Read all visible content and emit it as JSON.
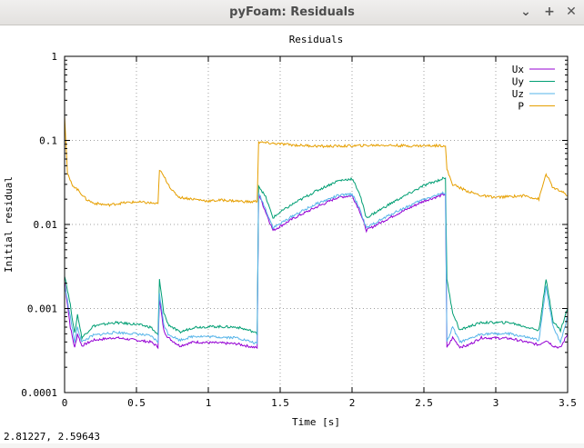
{
  "window": {
    "title": "pyFoam: Residuals",
    "minimize_glyph": "⌄",
    "maximize_glyph": "+",
    "close_glyph": "✕"
  },
  "status": {
    "coords": "2.81227,  2.59643"
  },
  "chart_data": {
    "type": "line",
    "title": "Residuals",
    "xlabel": "Time [s]",
    "ylabel": "Initial residual",
    "xlim": [
      0,
      3.5
    ],
    "ylim": [
      0.0001,
      1
    ],
    "yscale": "log",
    "grid": true,
    "legend_position": "top-right",
    "x_ticks": [
      0,
      0.5,
      1,
      1.5,
      2,
      2.5,
      3,
      3.5
    ],
    "x_tick_labels": [
      "0",
      "0.5",
      "1",
      "1.5",
      "2",
      "2.5",
      "3",
      "3.5"
    ],
    "y_ticks": [
      0.0001,
      0.001,
      0.01,
      0.1,
      1
    ],
    "y_tick_labels": [
      "0.0001",
      "0.001",
      "0.01",
      "0.1",
      "1"
    ],
    "series": [
      {
        "name": "Ux",
        "color": "#9400d3",
        "points": [
          [
            0,
            0.0021
          ],
          [
            0.04,
            0.0006
          ],
          [
            0.07,
            0.00034
          ],
          [
            0.09,
            0.0005
          ],
          [
            0.12,
            0.00036
          ],
          [
            0.2,
            0.00042
          ],
          [
            0.35,
            0.00045
          ],
          [
            0.5,
            0.00042
          ],
          [
            0.6,
            0.0004
          ],
          [
            0.65,
            0.00035
          ],
          [
            0.66,
            0.0013
          ],
          [
            0.69,
            0.00055
          ],
          [
            0.72,
            0.00045
          ],
          [
            0.8,
            0.00036
          ],
          [
            0.9,
            0.0004
          ],
          [
            1.05,
            0.00039
          ],
          [
            1.2,
            0.00038
          ],
          [
            1.3,
            0.00035
          ],
          [
            1.34,
            0.00034
          ],
          [
            1.35,
            0.023
          ],
          [
            1.4,
            0.014
          ],
          [
            1.45,
            0.0085
          ],
          [
            1.5,
            0.0095
          ],
          [
            1.6,
            0.012
          ],
          [
            1.75,
            0.016
          ],
          [
            1.9,
            0.021
          ],
          [
            2.0,
            0.022
          ],
          [
            2.05,
            0.015
          ],
          [
            2.1,
            0.0085
          ],
          [
            2.15,
            0.0095
          ],
          [
            2.3,
            0.013
          ],
          [
            2.5,
            0.019
          ],
          [
            2.65,
            0.023
          ],
          [
            2.66,
            0.00034
          ],
          [
            2.7,
            0.00045
          ],
          [
            2.75,
            0.00035
          ],
          [
            2.8,
            0.00036
          ],
          [
            2.9,
            0.00045
          ],
          [
            3.1,
            0.00044
          ],
          [
            3.3,
            0.00037
          ],
          [
            3.35,
            0.00042
          ],
          [
            3.4,
            0.00036
          ],
          [
            3.45,
            0.00034
          ],
          [
            3.5,
            0.0005
          ]
        ]
      },
      {
        "name": "Uy",
        "color": "#009e73",
        "points": [
          [
            0,
            0.0025
          ],
          [
            0.04,
            0.0011
          ],
          [
            0.07,
            0.0005
          ],
          [
            0.09,
            0.00085
          ],
          [
            0.12,
            0.00045
          ],
          [
            0.2,
            0.00062
          ],
          [
            0.35,
            0.00068
          ],
          [
            0.5,
            0.00065
          ],
          [
            0.6,
            0.0006
          ],
          [
            0.65,
            0.00048
          ],
          [
            0.66,
            0.0022
          ],
          [
            0.69,
            0.0009
          ],
          [
            0.72,
            0.00065
          ],
          [
            0.8,
            0.00052
          ],
          [
            0.9,
            0.0006
          ],
          [
            1.05,
            0.00061
          ],
          [
            1.2,
            0.0006
          ],
          [
            1.3,
            0.00054
          ],
          [
            1.34,
            0.0005
          ],
          [
            1.35,
            0.029
          ],
          [
            1.4,
            0.021
          ],
          [
            1.45,
            0.012
          ],
          [
            1.5,
            0.014
          ],
          [
            1.6,
            0.018
          ],
          [
            1.75,
            0.025
          ],
          [
            1.9,
            0.033
          ],
          [
            2.0,
            0.035
          ],
          [
            2.05,
            0.024
          ],
          [
            2.1,
            0.012
          ],
          [
            2.15,
            0.0135
          ],
          [
            2.3,
            0.019
          ],
          [
            2.5,
            0.029
          ],
          [
            2.65,
            0.036
          ],
          [
            2.66,
            0.0022
          ],
          [
            2.7,
            0.0009
          ],
          [
            2.75,
            0.00055
          ],
          [
            2.8,
            0.0006
          ],
          [
            2.9,
            0.00068
          ],
          [
            3.1,
            0.00068
          ],
          [
            3.3,
            0.00055
          ],
          [
            3.35,
            0.0022
          ],
          [
            3.4,
            0.0007
          ],
          [
            3.45,
            0.00055
          ],
          [
            3.5,
            0.001
          ]
        ]
      },
      {
        "name": "Uz",
        "color": "#56b4e9",
        "points": [
          [
            0,
            0.0019
          ],
          [
            0.04,
            0.0008
          ],
          [
            0.07,
            0.0004
          ],
          [
            0.09,
            0.0006
          ],
          [
            0.12,
            0.0004
          ],
          [
            0.2,
            0.00048
          ],
          [
            0.35,
            0.00052
          ],
          [
            0.5,
            0.0005
          ],
          [
            0.6,
            0.00047
          ],
          [
            0.65,
            0.0004
          ],
          [
            0.66,
            0.0015
          ],
          [
            0.69,
            0.00065
          ],
          [
            0.72,
            0.0005
          ],
          [
            0.8,
            0.00042
          ],
          [
            0.9,
            0.00047
          ],
          [
            1.05,
            0.00046
          ],
          [
            1.2,
            0.00045
          ],
          [
            1.3,
            0.0004
          ],
          [
            1.34,
            0.00038
          ],
          [
            1.35,
            0.024
          ],
          [
            1.4,
            0.015
          ],
          [
            1.45,
            0.0092
          ],
          [
            1.5,
            0.0102
          ],
          [
            1.6,
            0.013
          ],
          [
            1.75,
            0.0175
          ],
          [
            1.9,
            0.022
          ],
          [
            2.0,
            0.023
          ],
          [
            2.05,
            0.016
          ],
          [
            2.1,
            0.009
          ],
          [
            2.15,
            0.0102
          ],
          [
            2.3,
            0.014
          ],
          [
            2.5,
            0.02
          ],
          [
            2.65,
            0.024
          ],
          [
            2.66,
            0.0004
          ],
          [
            2.7,
            0.0006
          ],
          [
            2.75,
            0.0004
          ],
          [
            2.8,
            0.00042
          ],
          [
            2.9,
            0.0005
          ],
          [
            3.1,
            0.0005
          ],
          [
            3.3,
            0.00042
          ],
          [
            3.35,
            0.0018
          ],
          [
            3.4,
            0.0006
          ],
          [
            3.45,
            0.0004
          ],
          [
            3.5,
            0.0008
          ]
        ]
      },
      {
        "name": "P",
        "color": "#e69f00",
        "points": [
          [
            0,
            0.2
          ],
          [
            0.01,
            0.09
          ],
          [
            0.02,
            0.04
          ],
          [
            0.05,
            0.03
          ],
          [
            0.1,
            0.025
          ],
          [
            0.15,
            0.02
          ],
          [
            0.2,
            0.018
          ],
          [
            0.3,
            0.017
          ],
          [
            0.4,
            0.018
          ],
          [
            0.5,
            0.0185
          ],
          [
            0.6,
            0.018
          ],
          [
            0.65,
            0.0175
          ],
          [
            0.66,
            0.045
          ],
          [
            0.7,
            0.035
          ],
          [
            0.75,
            0.025
          ],
          [
            0.8,
            0.021
          ],
          [
            0.9,
            0.02
          ],
          [
            1.0,
            0.019
          ],
          [
            1.1,
            0.0195
          ],
          [
            1.2,
            0.019
          ],
          [
            1.3,
            0.0185
          ],
          [
            1.34,
            0.019
          ],
          [
            1.35,
            0.095
          ],
          [
            1.45,
            0.092
          ],
          [
            1.6,
            0.088
          ],
          [
            1.8,
            0.085
          ],
          [
            2.0,
            0.086
          ],
          [
            2.2,
            0.088
          ],
          [
            2.4,
            0.086
          ],
          [
            2.65,
            0.087
          ],
          [
            2.66,
            0.045
          ],
          [
            2.7,
            0.03
          ],
          [
            2.8,
            0.025
          ],
          [
            2.9,
            0.022
          ],
          [
            3.0,
            0.021
          ],
          [
            3.1,
            0.0215
          ],
          [
            3.2,
            0.022
          ],
          [
            3.3,
            0.02
          ],
          [
            3.35,
            0.04
          ],
          [
            3.4,
            0.027
          ],
          [
            3.45,
            0.025
          ],
          [
            3.5,
            0.022
          ]
        ]
      }
    ]
  }
}
